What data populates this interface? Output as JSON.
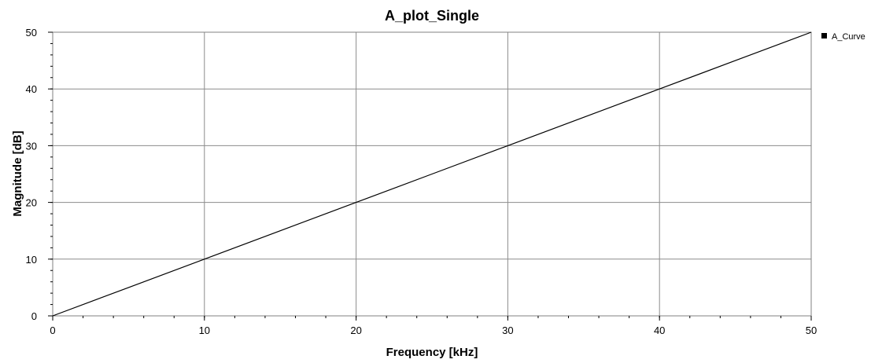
{
  "chart_data": {
    "type": "line",
    "title": "A_plot_Single",
    "xlabel": "Frequency [kHz]",
    "ylabel": "Magnitude [dB]",
    "xlim": [
      0,
      50
    ],
    "ylim": [
      0,
      50
    ],
    "xticks": [
      0,
      10,
      20,
      30,
      40,
      50
    ],
    "yticks": [
      0,
      10,
      20,
      30,
      40,
      50
    ],
    "grid": true,
    "legend_position": "top-right",
    "series": [
      {
        "name": "A_Curve",
        "color": "#000000",
        "x": [
          0,
          5,
          10,
          15,
          20,
          25,
          30,
          35,
          40,
          45,
          50
        ],
        "y": [
          0,
          5,
          10,
          15,
          20,
          25,
          30,
          35,
          40,
          45,
          50
        ]
      }
    ]
  }
}
